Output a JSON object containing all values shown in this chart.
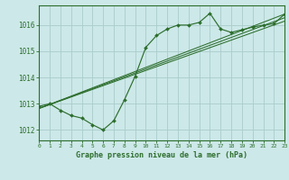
{
  "title": "Graphe pression niveau de la mer (hPa)",
  "bg_color": "#cce8e8",
  "grid_color": "#aacccc",
  "line_color": "#2d6e2d",
  "x_min": 0,
  "x_max": 23,
  "y_min": 1011.6,
  "y_max": 1016.75,
  "yticks": [
    1012,
    1013,
    1014,
    1015,
    1016
  ],
  "xticks": [
    0,
    1,
    2,
    3,
    4,
    5,
    6,
    7,
    8,
    9,
    10,
    11,
    12,
    13,
    14,
    15,
    16,
    17,
    18,
    19,
    20,
    21,
    22,
    23
  ],
  "main_line_x": [
    0,
    1,
    2,
    3,
    4,
    5,
    6,
    7,
    8,
    9,
    10,
    11,
    12,
    13,
    14,
    15,
    16,
    17,
    18,
    19,
    20,
    21,
    22,
    23
  ],
  "main_line_y": [
    1012.9,
    1013.0,
    1012.75,
    1012.55,
    1012.45,
    1012.2,
    1012.0,
    1012.35,
    1013.15,
    1014.05,
    1015.15,
    1015.6,
    1015.85,
    1016.0,
    1016.0,
    1016.1,
    1016.45,
    1015.85,
    1015.72,
    1015.82,
    1015.92,
    1016.0,
    1016.05,
    1016.42
  ],
  "trend_lines": [
    {
      "x": [
        0,
        23
      ],
      "y": [
        1012.82,
        1016.28
      ]
    },
    {
      "x": [
        0,
        23
      ],
      "y": [
        1012.82,
        1016.42
      ]
    },
    {
      "x": [
        0,
        23
      ],
      "y": [
        1012.82,
        1016.15
      ]
    }
  ]
}
